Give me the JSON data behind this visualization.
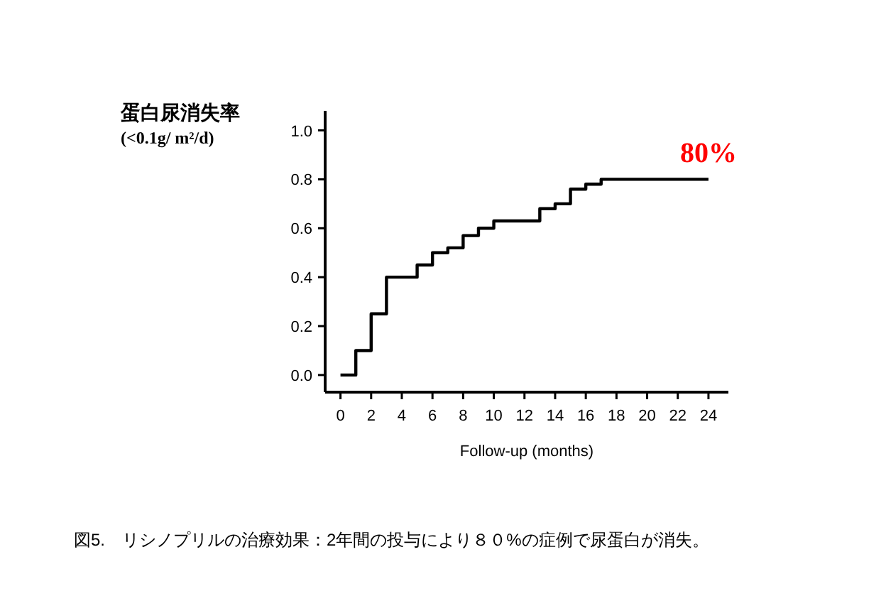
{
  "chart_data": {
    "type": "step",
    "ylabel": "蛋白尿消失率\n(<0.1g/ m²/d)",
    "xlabel": "Follow-up (months)",
    "x": [
      0,
      1,
      2,
      3,
      5,
      6,
      7,
      8,
      9,
      10,
      13,
      14,
      15,
      16,
      17,
      24
    ],
    "series": [
      {
        "color": "#000000",
        "values": [
          0,
          0.1,
          0.25,
          0.4,
          0.45,
          0.5,
          0.52,
          0.57,
          0.6,
          0.63,
          0.68,
          0.7,
          0.76,
          0.78,
          0.8,
          0.8
        ]
      }
    ],
    "xlim": [
      -1,
      25.3
    ],
    "ylim": [
      -0.07,
      1.08
    ],
    "xticks": [
      0,
      2,
      4,
      6,
      8,
      10,
      12,
      14,
      16,
      18,
      20,
      22,
      24
    ],
    "yticks": [
      {
        "value": 0,
        "label": "0.0"
      },
      {
        "value": 0.2,
        "label": "0.2"
      },
      {
        "value": 0.4,
        "label": "0.4"
      },
      {
        "value": 0.6,
        "label": "0.6"
      },
      {
        "value": 0.8,
        "label": "0.8"
      },
      {
        "value": 1,
        "label": "1.0"
      }
    ],
    "grid": false,
    "annotations": [
      {
        "text": "80%",
        "x": 24,
        "y": 0.8
      },
      "図5.　リシノプリルの治療効果：2年間の投与により８０%の症例で尿蛋白が消失。"
    ]
  }
}
